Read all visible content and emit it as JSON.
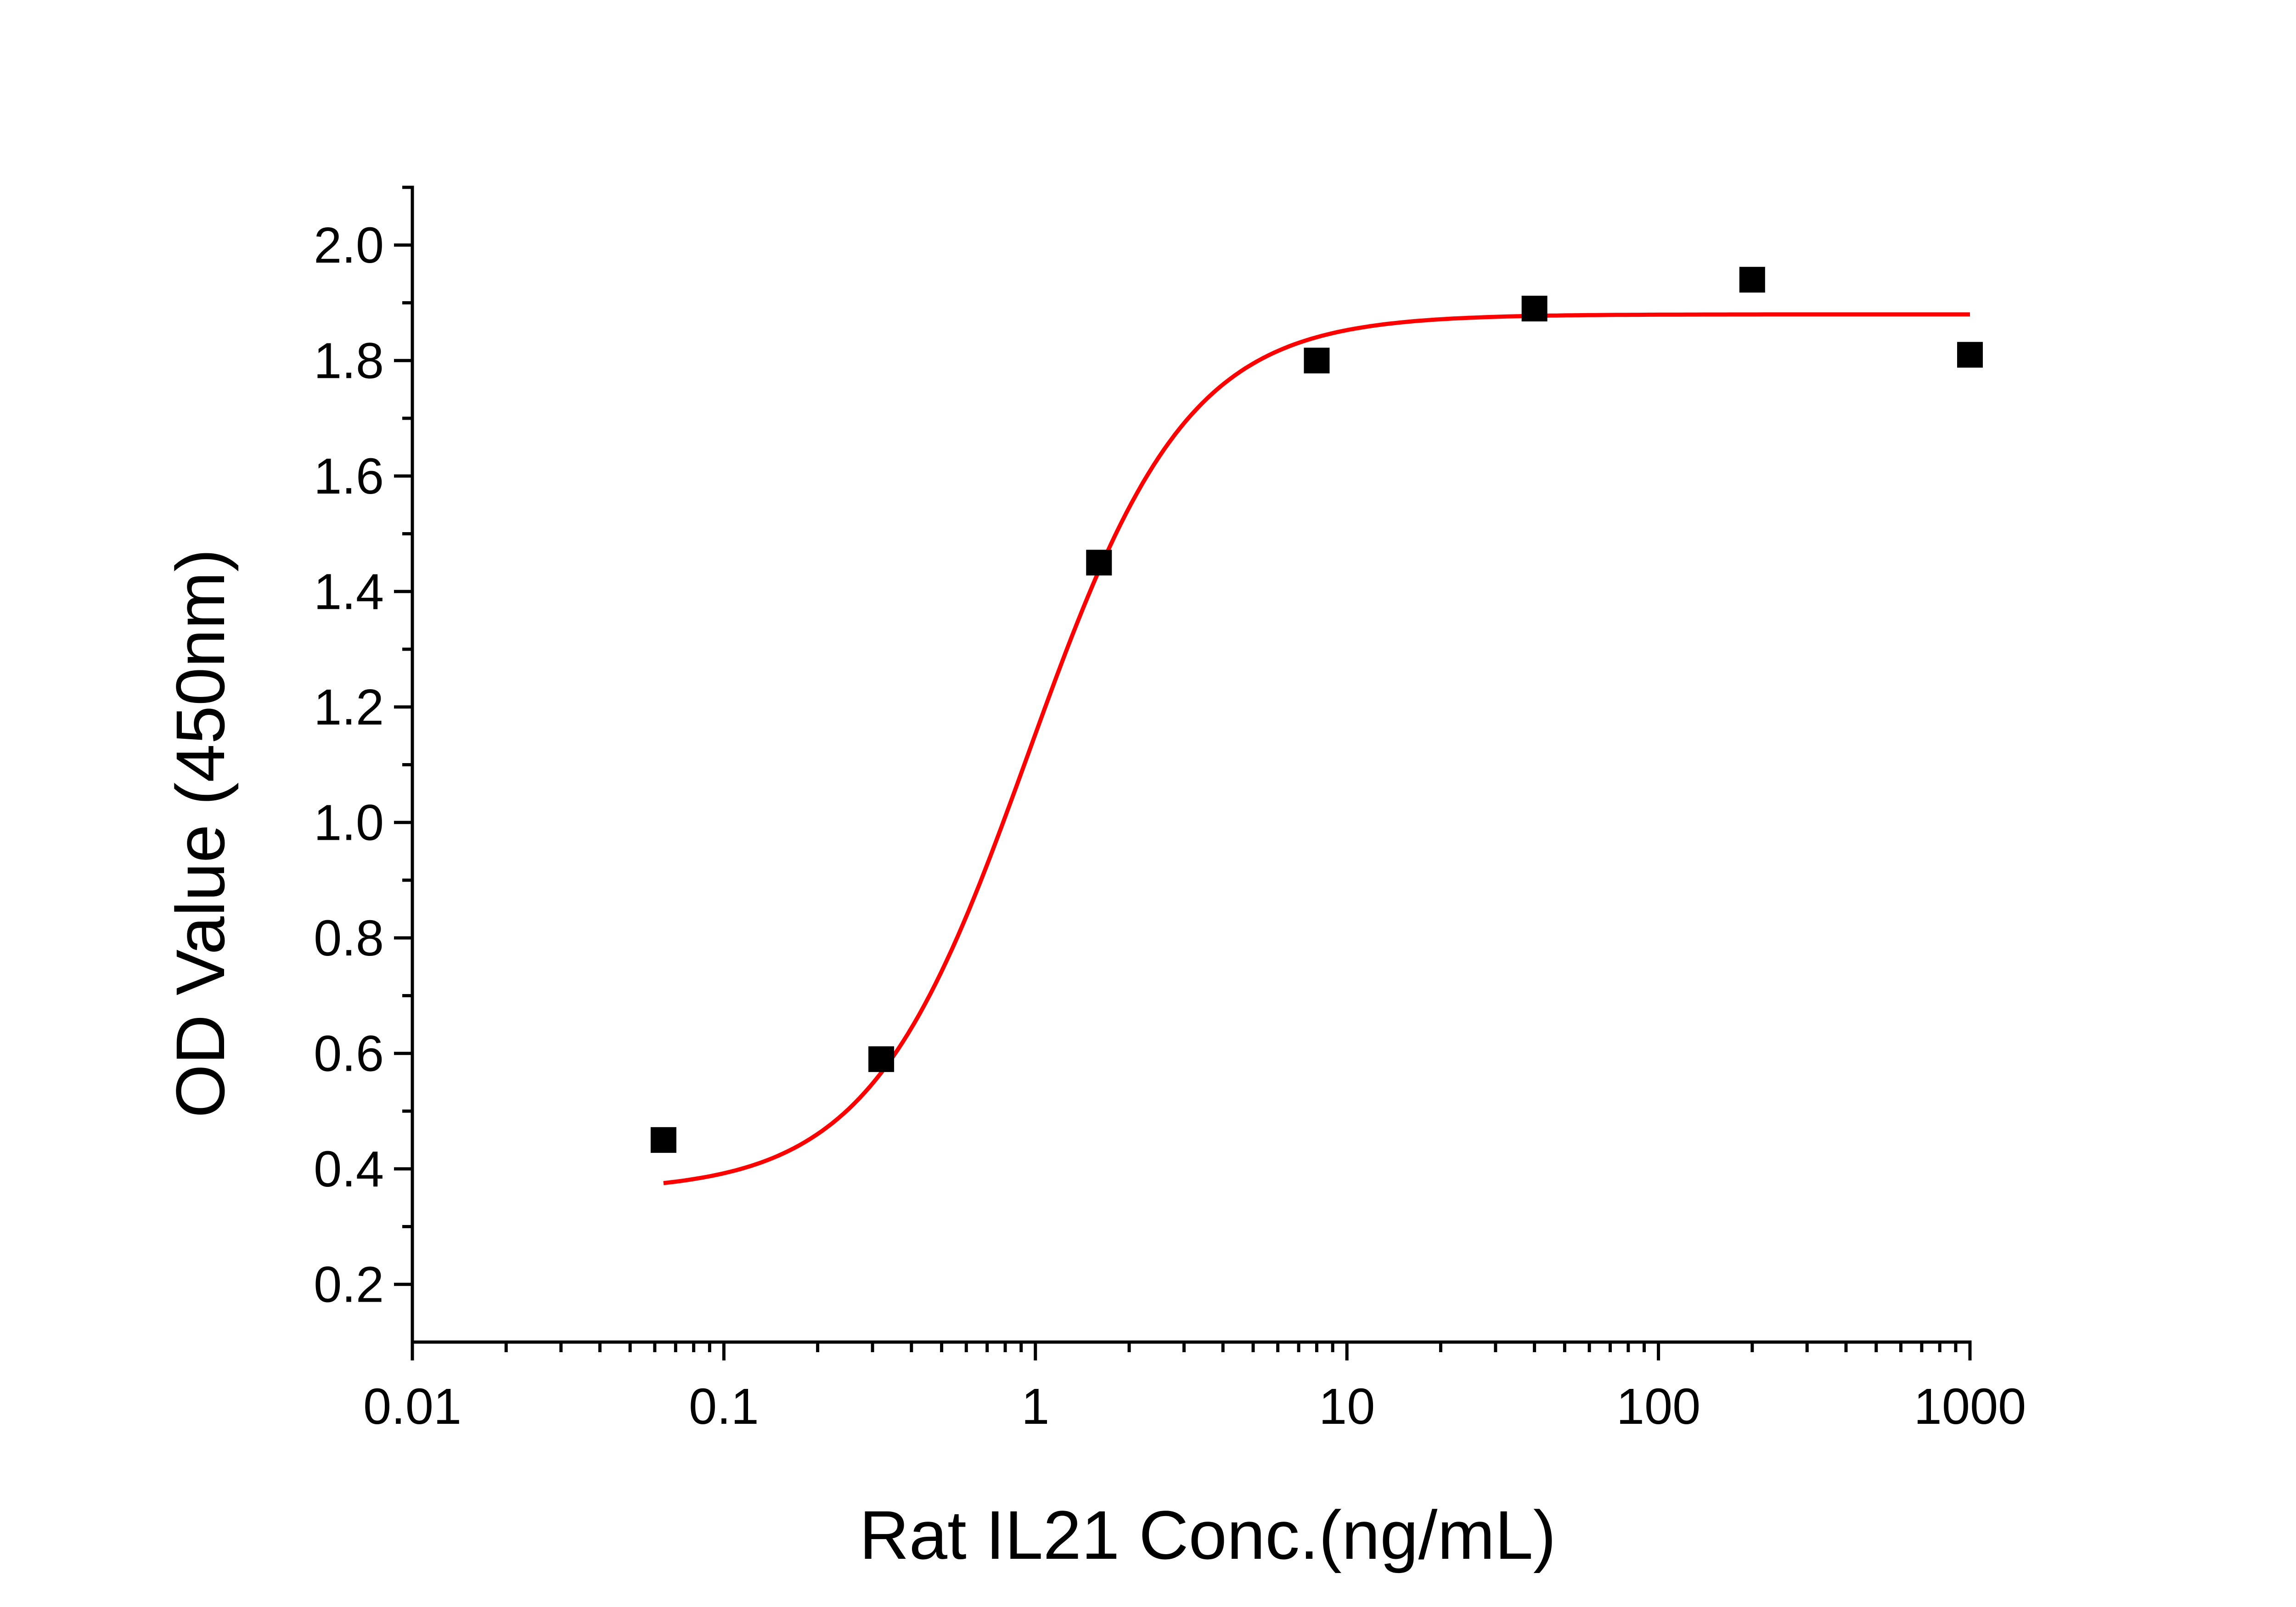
{
  "chart_data": {
    "type": "scatter",
    "title": "",
    "xlabel": "Rat IL21 Conc.(ng/mL)",
    "ylabel": "OD Value (450nm)",
    "x_scale": "log",
    "xlim": [
      0.01,
      1000
    ],
    "ylim": [
      0.1,
      2.1
    ],
    "x_ticks": [
      0.01,
      0.1,
      1,
      10,
      100,
      1000
    ],
    "x_tick_labels": [
      "0.01",
      "0.1",
      "1",
      "10",
      "100",
      "1000"
    ],
    "y_ticks": [
      0.2,
      0.4,
      0.6,
      0.8,
      1.0,
      1.2,
      1.4,
      1.6,
      1.8,
      2.0
    ],
    "y_tick_labels": [
      "0.2",
      "0.4",
      "0.6",
      "0.8",
      "1.0",
      "1.2",
      "1.4",
      "1.6",
      "1.8",
      "2.0"
    ],
    "grid": false,
    "legend": "none",
    "series": [
      {
        "type": "scatter",
        "marker": "square",
        "color": "#000000",
        "x": [
          0.064,
          0.32,
          1.6,
          8,
          40,
          200,
          1000
        ],
        "y": [
          0.45,
          0.59,
          1.45,
          1.8,
          1.89,
          1.94,
          1.81
        ]
      },
      {
        "type": "line",
        "fit": "four-parameter logistic",
        "color": "#ff0000",
        "x_range": [
          0.064,
          1000
        ],
        "params": {
          "bottom": 0.36,
          "top": 1.88,
          "ec50": 0.95,
          "hill": 1.7
        }
      }
    ]
  }
}
